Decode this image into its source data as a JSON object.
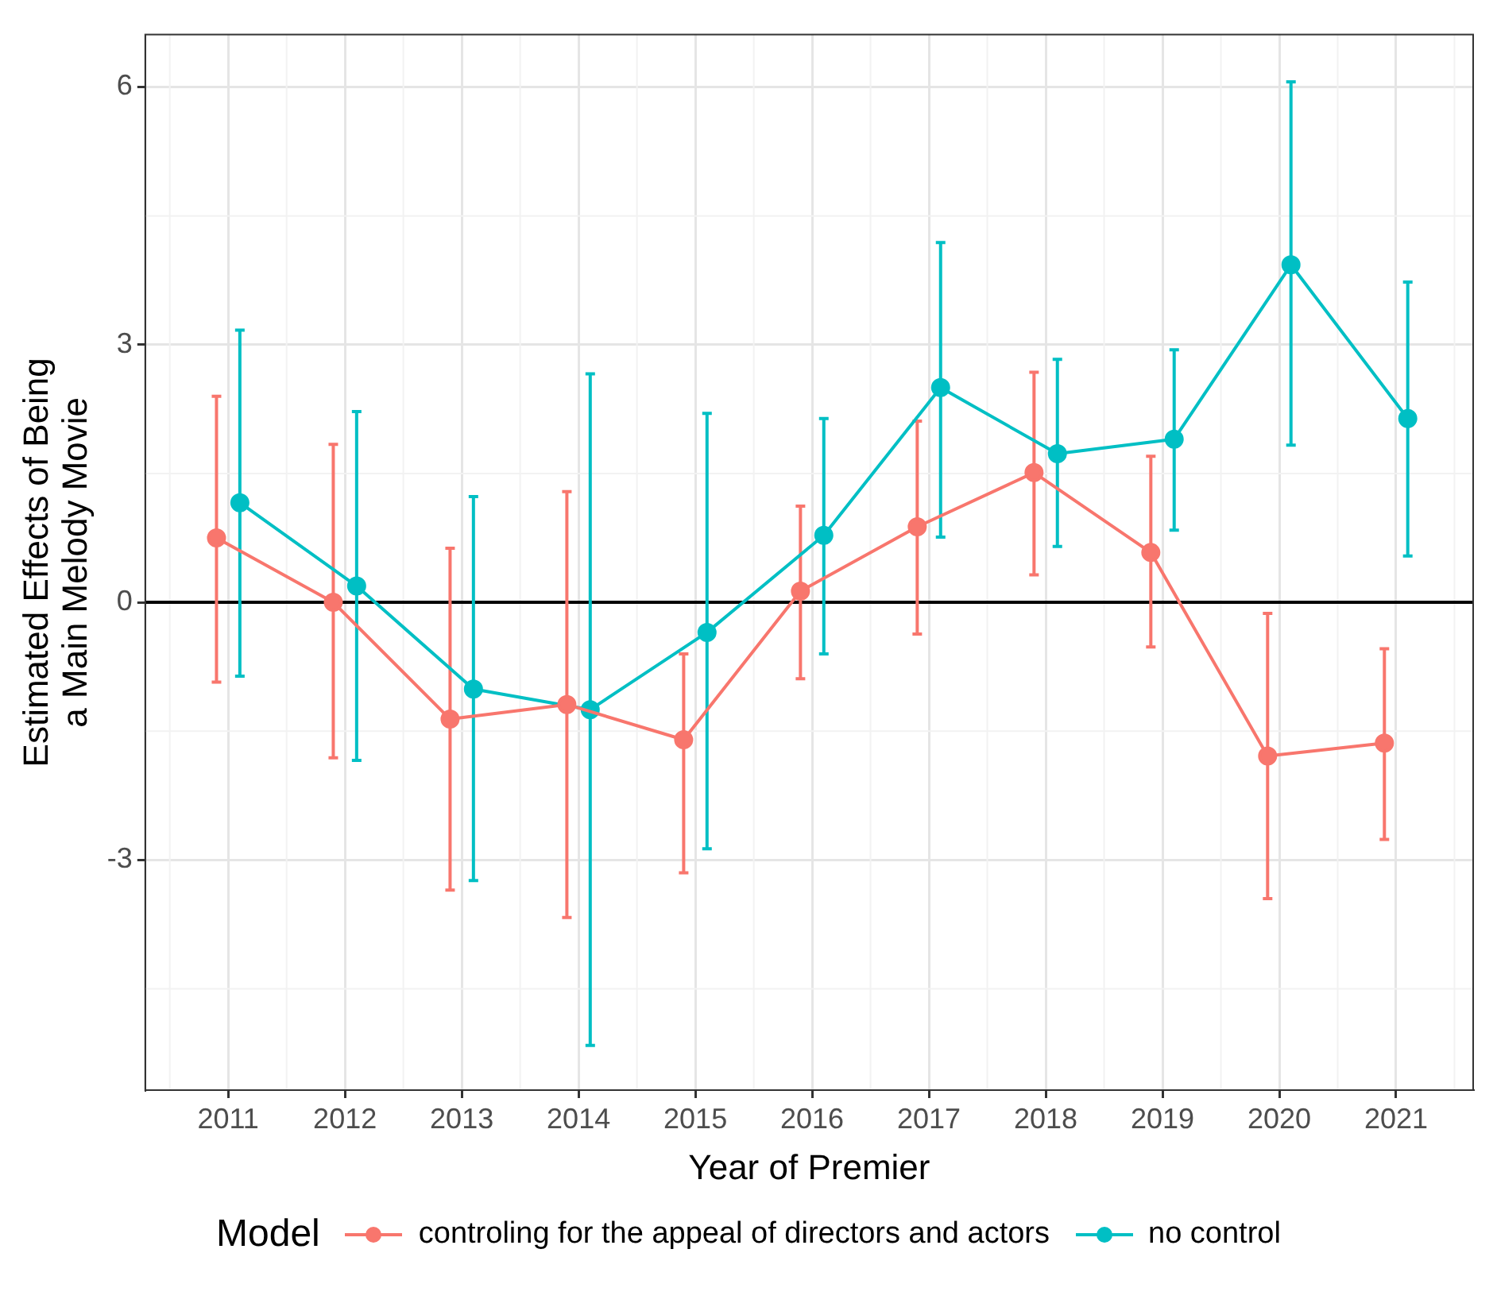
{
  "chart_data": {
    "type": "line",
    "xlabel": "Year of Premier",
    "ylabel": "Estimated Effects of Being\na Main Melody Movie",
    "legend_title": "Model",
    "legend": "bottom",
    "grid": true,
    "marker": "circle",
    "line_style": "solid",
    "xlim": [
      2010.29,
      2021.66
    ],
    "xticks": [
      2011,
      2012,
      2013,
      2014,
      2015,
      2016,
      2017,
      2018,
      2019,
      2020,
      2021
    ],
    "ylim": [
      -5.68,
      6.61
    ],
    "yticks": [
      -3,
      0,
      3,
      6
    ],
    "ref_lines": [
      {
        "axis": "y",
        "value": 0,
        "color": "#000000"
      }
    ],
    "series": [
      {
        "name": "controling for the appeal of directors and actors",
        "color": "#f8766d",
        "x": [
          2010.9,
          2011.9,
          2012.9,
          2013.9,
          2014.9,
          2015.9,
          2016.9,
          2017.9,
          2018.9,
          2019.9,
          2020.9
        ],
        "values": [
          0.75,
          0,
          -1.36,
          -1.19,
          -1.6,
          0.13,
          0.88,
          1.51,
          0.58,
          -1.79,
          -1.64
        ],
        "errors": [
          [
            -0.93,
            2.4
          ],
          [
            -1.81,
            1.84
          ],
          [
            -3.35,
            0.63
          ],
          [
            -3.67,
            1.29
          ],
          [
            -3.15,
            -0.6
          ],
          [
            -0.89,
            1.12
          ],
          [
            -0.37,
            2.11
          ],
          [
            0.32,
            2.68
          ],
          [
            -0.52,
            1.7
          ],
          [
            -3.45,
            -0.13
          ],
          [
            -2.76,
            -0.54
          ]
        ]
      },
      {
        "name": "no control",
        "color": "#00bfc4",
        "x": [
          2011.1,
          2012.1,
          2013.1,
          2014.1,
          2015.1,
          2016.1,
          2017.1,
          2018.1,
          2019.1,
          2020.1,
          2021.1
        ],
        "values": [
          1.16,
          0.19,
          -1.01,
          -1.25,
          -0.35,
          0.78,
          2.5,
          1.73,
          1.9,
          3.93,
          2.14
        ],
        "errors": [
          [
            -0.86,
            3.17
          ],
          [
            -1.84,
            2.22
          ],
          [
            -3.24,
            1.23
          ],
          [
            -5.16,
            2.66
          ],
          [
            -2.87,
            2.2
          ],
          [
            -0.6,
            2.14
          ],
          [
            0.76,
            4.19
          ],
          [
            0.65,
            2.83
          ],
          [
            0.84,
            2.94
          ],
          [
            1.83,
            6.06
          ],
          [
            0.54,
            3.73
          ]
        ]
      }
    ]
  }
}
